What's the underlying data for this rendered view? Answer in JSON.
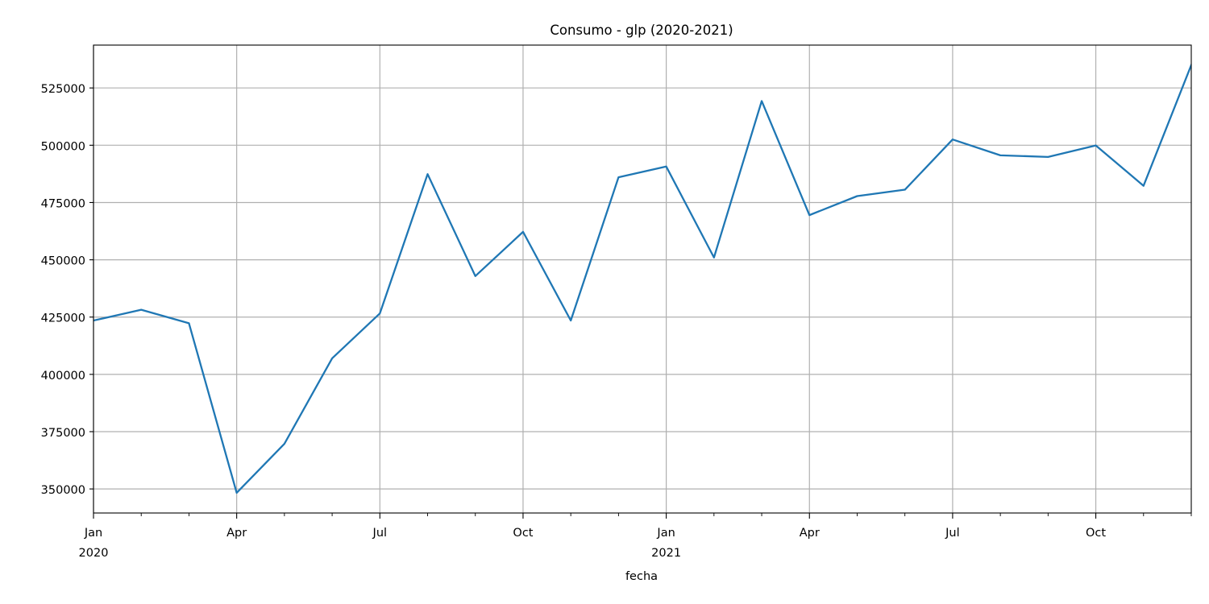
{
  "chart_data": {
    "type": "line",
    "title": "Consumo - glp (2020-2021)",
    "xlabel": "fecha",
    "ylabel": "",
    "x": [
      "2020-01",
      "2020-02",
      "2020-03",
      "2020-04",
      "2020-05",
      "2020-06",
      "2020-07",
      "2020-08",
      "2020-09",
      "2020-10",
      "2020-11",
      "2020-12",
      "2021-01",
      "2021-02",
      "2021-03",
      "2021-04",
      "2021-05",
      "2021-06",
      "2021-07",
      "2021-08",
      "2021-09",
      "2021-10",
      "2021-11",
      "2021-12"
    ],
    "series": [
      {
        "values": [
          423500,
          428200,
          422300,
          348300,
          369700,
          407000,
          426600,
          487400,
          442900,
          462200,
          423500,
          486000,
          490700,
          451000,
          519300,
          469500,
          477800,
          480600,
          502500,
          495600,
          494900,
          499900,
          482300,
          535000
        ]
      }
    ],
    "xlim": [
      "2020-01",
      "2021-12"
    ],
    "ylim": [
      339500,
      543700
    ],
    "yticks": [
      350000,
      375000,
      400000,
      425000,
      450000,
      475000,
      500000,
      525000
    ],
    "ytick_labels": [
      "350000",
      "375000",
      "400000",
      "425000",
      "450000",
      "475000",
      "500000",
      "525000"
    ],
    "xticks_major": [
      {
        "x": "2020-01",
        "label": "Jan",
        "sublabel": "2020"
      },
      {
        "x": "2020-04",
        "label": "Apr",
        "sublabel": ""
      },
      {
        "x": "2020-07",
        "label": "Jul",
        "sublabel": ""
      },
      {
        "x": "2020-10",
        "label": "Oct",
        "sublabel": ""
      },
      {
        "x": "2021-01",
        "label": "Jan",
        "sublabel": "2021"
      },
      {
        "x": "2021-04",
        "label": "Apr",
        "sublabel": ""
      },
      {
        "x": "2021-07",
        "label": "Jul",
        "sublabel": ""
      },
      {
        "x": "2021-10",
        "label": "Oct",
        "sublabel": ""
      }
    ],
    "grid": true,
    "legend": "none",
    "colors": {
      "line": "#1f77b4",
      "grid": "#b0b0b0",
      "axes": "#000000"
    }
  }
}
